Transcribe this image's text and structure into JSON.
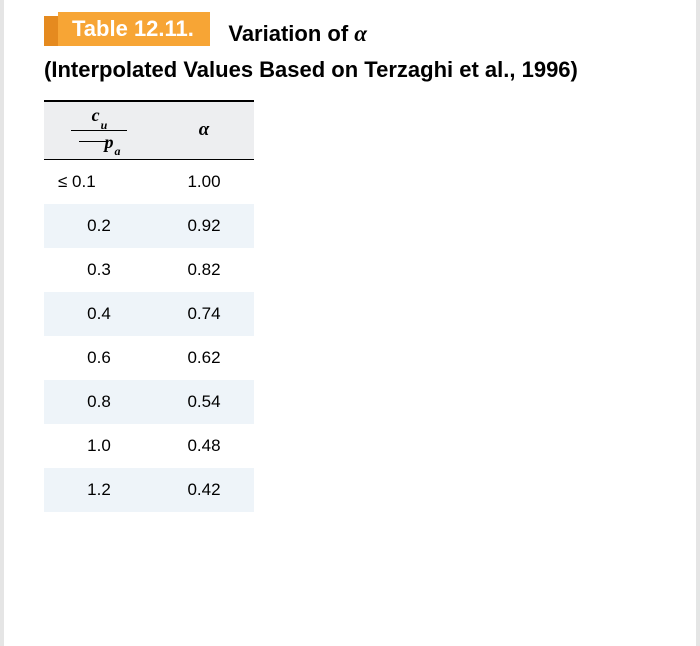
{
  "header": {
    "table_label": "Table 12.11.",
    "title_prefix": "Variation of ",
    "title_symbol": "α",
    "subtitle": "(Interpolated Values Based on Terzaghi et al., 1996)"
  },
  "table": {
    "columns": {
      "col1_numerator_var": "c",
      "col1_numerator_sub": "u",
      "col1_denominator_var": "p",
      "col1_denominator_sub": "a",
      "col2_label": "α"
    },
    "rows": [
      {
        "ratio": "≤ 0.1",
        "alpha": "1.00",
        "shaded": false
      },
      {
        "ratio": "0.2",
        "alpha": "0.92",
        "shaded": true
      },
      {
        "ratio": "0.3",
        "alpha": "0.82",
        "shaded": false
      },
      {
        "ratio": "0.4",
        "alpha": "0.74",
        "shaded": true
      },
      {
        "ratio": "0.6",
        "alpha": "0.62",
        "shaded": false
      },
      {
        "ratio": "0.8",
        "alpha": "0.54",
        "shaded": true
      },
      {
        "ratio": "1.0",
        "alpha": "0.48",
        "shaded": false
      },
      {
        "ratio": "1.2",
        "alpha": "0.42",
        "shaded": true
      }
    ]
  },
  "style": {
    "accent_dark": "#e58a1f",
    "accent_light": "#f7a535",
    "header_bg": "#edeef0",
    "row_shade": "#eef4f9",
    "text_color": "#000000",
    "label_text_color": "#ffffff",
    "title_fontsize": 22,
    "body_fontsize": 17
  }
}
